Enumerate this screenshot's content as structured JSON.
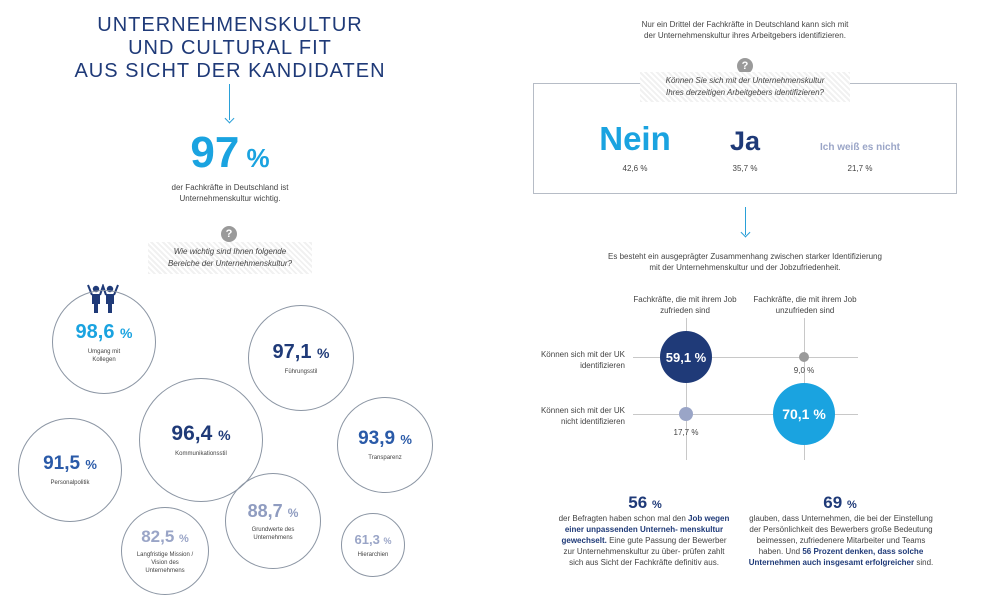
{
  "left": {
    "title_lines": [
      "UNTERNEHMENSKULTUR",
      "UND CULTURAL FIT",
      "AUS SICHT DER KANDIDATEN"
    ],
    "headline": {
      "value": "97",
      "unit": "%",
      "caption_lines": [
        "der Fachkräfte in Deutschland ist",
        "Unternehmenskultur wichtig."
      ]
    },
    "question_icon": "?",
    "question_lines": [
      "Wie wichtig sind Ihnen folgende",
      "Bereiche der Unternehmenskultur?"
    ],
    "people_icon": "colleagues-icon",
    "circles": [
      {
        "value": "98,6",
        "unit": "%",
        "label_lines": [
          "Umgang mit",
          "Kollegen"
        ]
      },
      {
        "value": "97,1",
        "unit": "%",
        "label_lines": [
          "Führungsstil"
        ]
      },
      {
        "value": "96,4",
        "unit": "%",
        "label_lines": [
          "Kommunikationsstil"
        ]
      },
      {
        "value": "93,9",
        "unit": "%",
        "label_lines": [
          "Transparenz"
        ]
      },
      {
        "value": "91,5",
        "unit": "%",
        "label_lines": [
          "Personalpolitik"
        ]
      },
      {
        "value": "88,7",
        "unit": "%",
        "label_lines": [
          "Grundwerte des",
          "Unternehmens"
        ]
      },
      {
        "value": "82,5",
        "unit": "%",
        "label_lines": [
          "Langfristige Mission /",
          "Vision des",
          "Unternehmens"
        ]
      },
      {
        "value": "61,3",
        "unit": "%",
        "label_lines": [
          "Hierarchien"
        ]
      }
    ]
  },
  "right": {
    "intro_lines": [
      "Nur ein Drittel der Fachkräfte in Deutschland kann sich mit",
      "der Unternehmenskultur ihres Arbeitgebers identifizieren."
    ],
    "question_icon": "?",
    "question_lines": [
      "Können Sie sich mit der Unternehmenskultur",
      "Ihres derzeitigen Arbeitgebers identifizieren?"
    ],
    "answers": [
      {
        "label": "Nein",
        "value": "42,6 %"
      },
      {
        "label": "Ja",
        "value": "35,7 %"
      },
      {
        "label": "Ich weiß es nicht",
        "value": "21,7 %"
      }
    ],
    "correlation_lines": [
      "Es besteht ein ausgeprägter Zusammenhang zwischen starker Identifizierung",
      "mit der Unternehmenskultur und der Jobzufriedenheit."
    ],
    "matrix": {
      "col_headers": [
        [
          "Fachkräfte, die mit ihrem Job",
          "zufrieden sind"
        ],
        [
          "Fachkräfte, die mit ihrem Job",
          "unzufrieden sind"
        ]
      ],
      "row_headers": [
        [
          "Können sich mit der UK",
          "identifizieren"
        ],
        [
          "Können sich mit der UK",
          "nicht identifizieren"
        ]
      ],
      "cells": [
        {
          "value": "59,1 %"
        },
        {
          "value": "9,0 %"
        },
        {
          "value": "17,7 %"
        },
        {
          "value": "70,1 %"
        }
      ]
    },
    "stat_left": {
      "value": "56",
      "unit": "%",
      "text_plain_1": "der Befragten haben schon mal den",
      "text_bold": "Job wegen einer unpassenden Unterneh- menskultur gewechselt.",
      "text_plain_2": "Eine gute Passung der Bewerber zur Unternehmenskultur zu über- prüfen zahlt sich aus Sicht der Fachkräfte definitiv aus."
    },
    "stat_right": {
      "value": "69",
      "unit": "%",
      "text_plain": "glauben, dass Unternehmen, die bei der Einstellung der Persönlichkeit des Bewerbers große Bedeutung beimessen, zufriedenere Mitarbeiter und Teams haben. Und",
      "text_bold": "56 Prozent denken, dass solche Unternehmen auch insgesamt erfolgreicher",
      "text_end": "sind."
    }
  },
  "colors": {
    "navy": "#1f3a78",
    "cyan": "#1aa3e0",
    "blue": "#2a5aa8",
    "grey_blue": "#8f9cc0",
    "light": "#9aa5c7"
  }
}
